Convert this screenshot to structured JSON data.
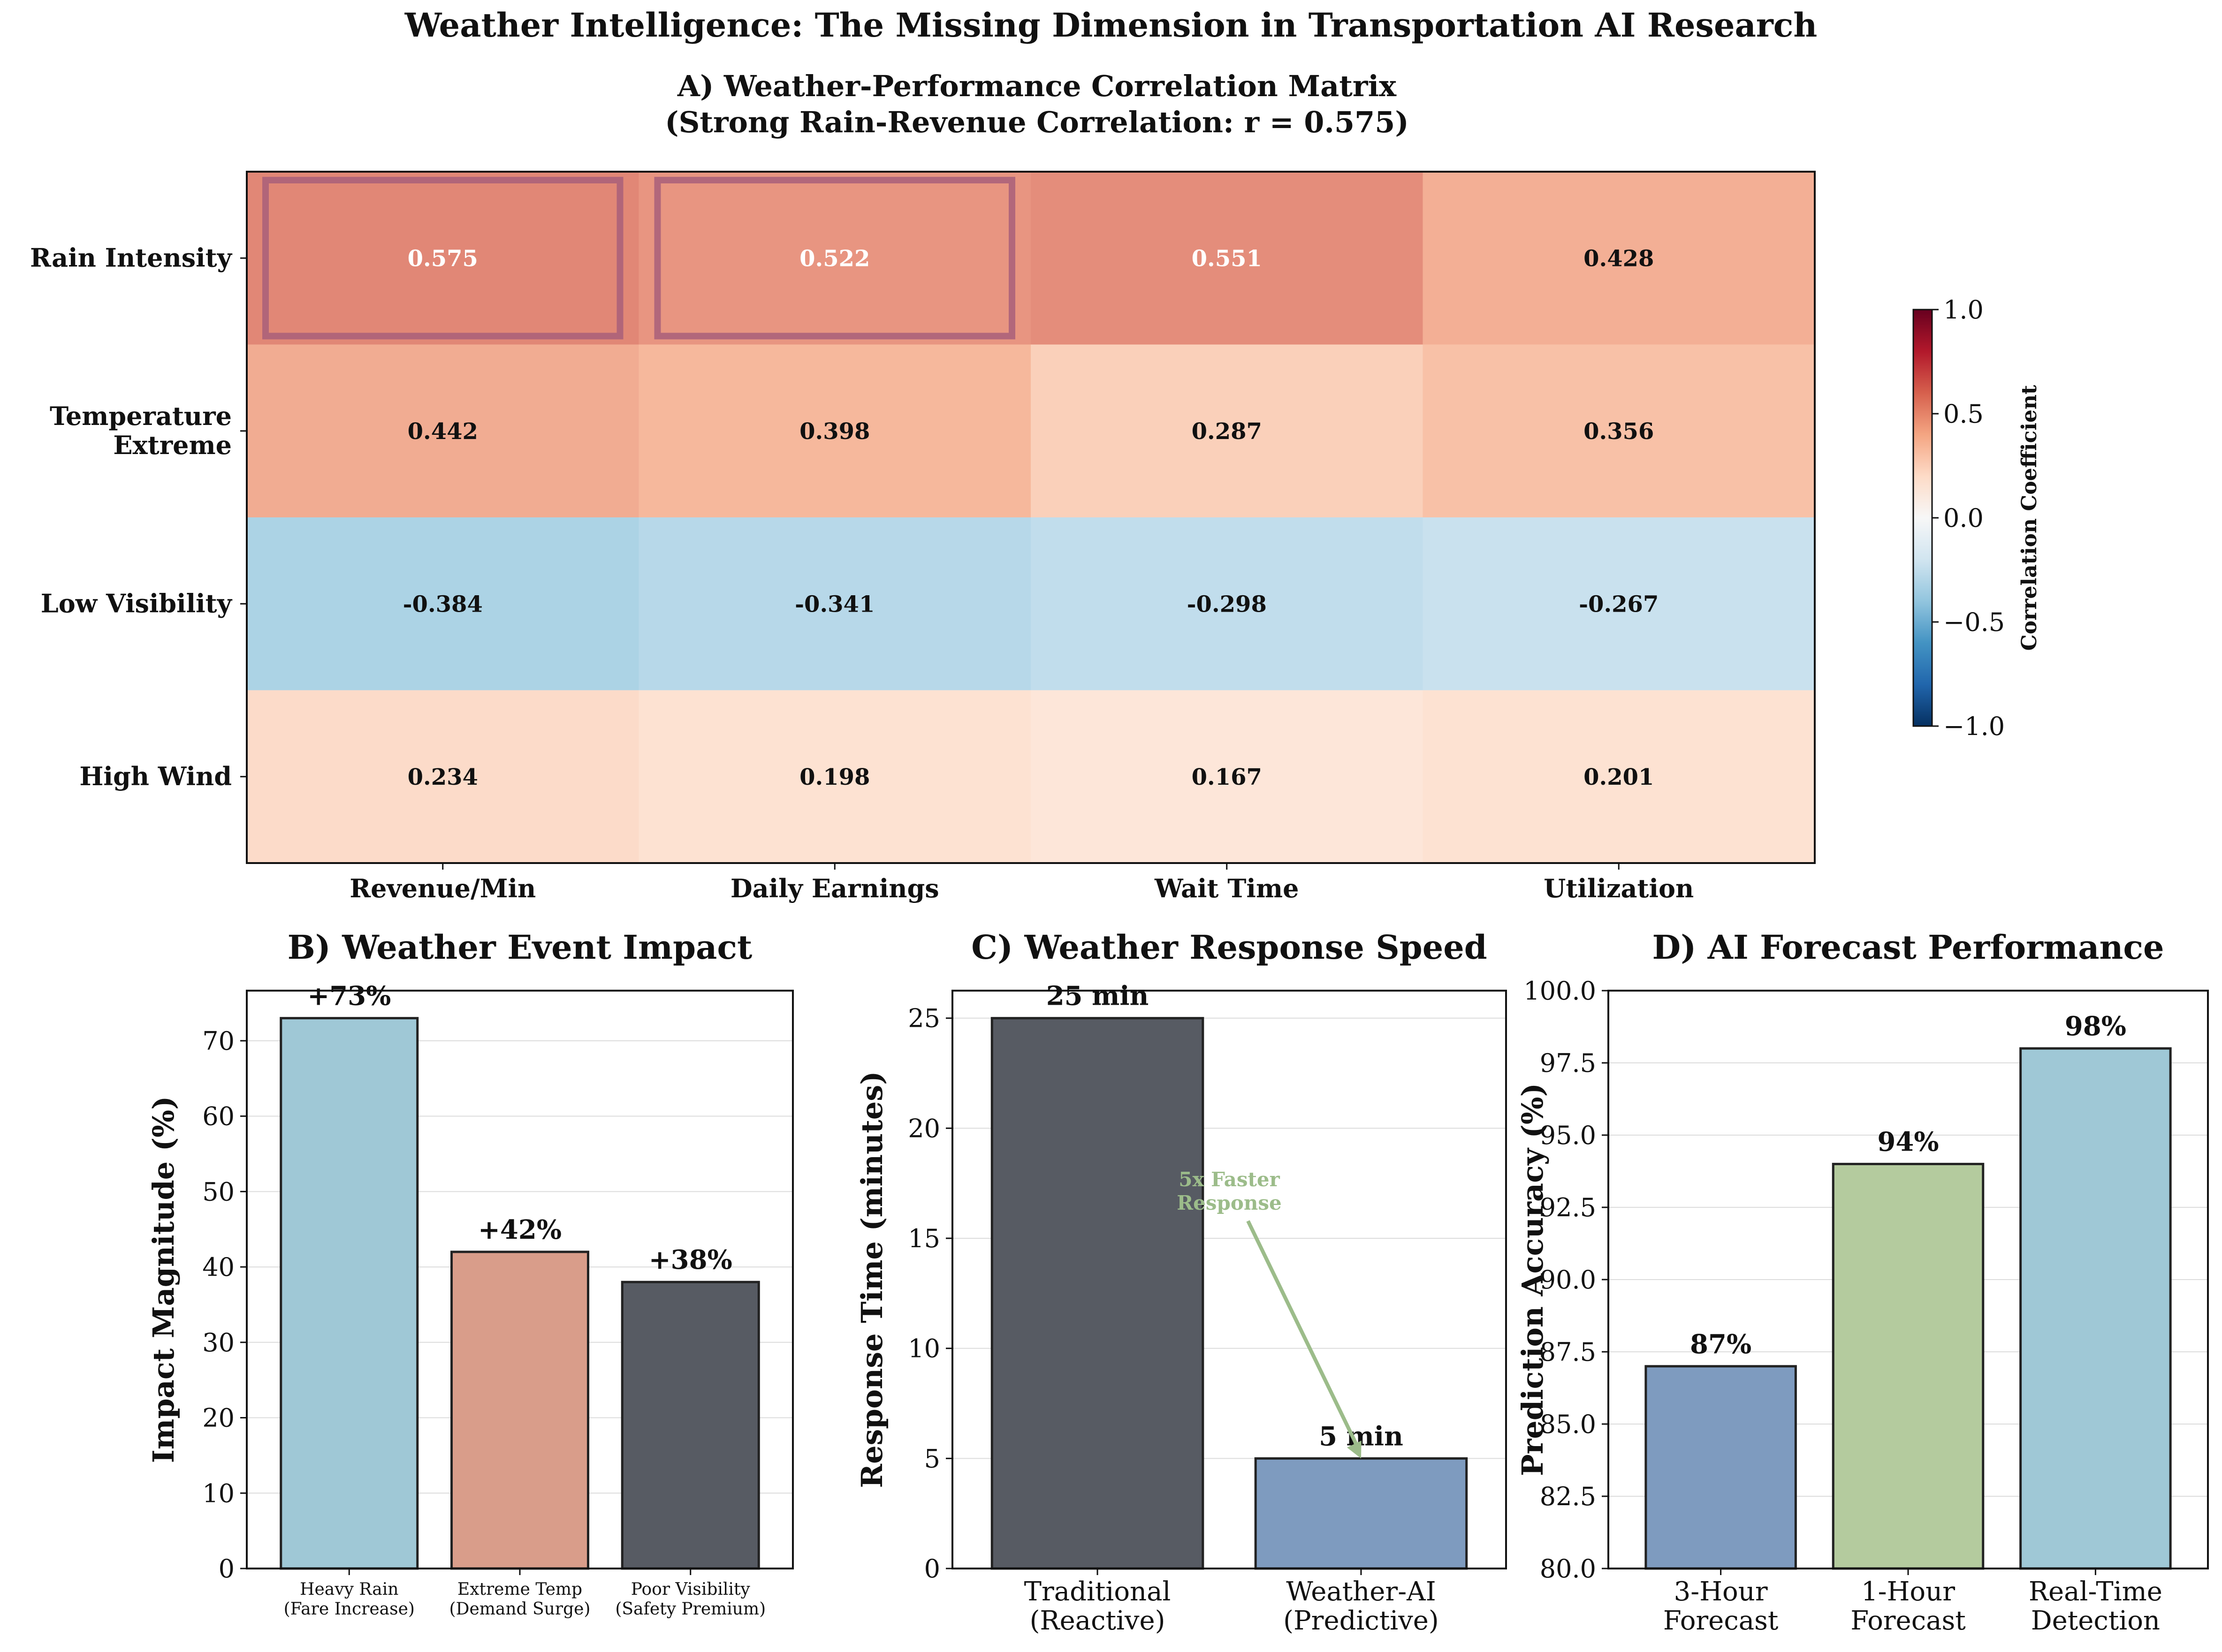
{
  "figure": {
    "title": "Weather Intelligence: The Missing Dimension in Transportation AI Research"
  },
  "chart_data": [
    {
      "type": "heatmap",
      "title": "A) Weather-Performance Correlation Matrix",
      "subtitle": "(Strong Rain-Revenue Correlation: r = 0.575)",
      "rows": [
        "Rain Intensity",
        "Temperature\nExtreme",
        "Low Visibility",
        "High Wind"
      ],
      "columns": [
        "Revenue/Min",
        "Daily Earnings",
        "Wait Time",
        "Utilization"
      ],
      "values": [
        [
          0.575,
          0.522,
          0.551,
          0.428
        ],
        [
          0.442,
          0.398,
          0.287,
          0.356
        ],
        [
          -0.384,
          -0.341,
          -0.298,
          -0.267
        ],
        [
          0.234,
          0.198,
          0.167,
          0.201
        ]
      ],
      "value_labels": [
        [
          "0.575",
          "0.522",
          "0.551",
          "0.428"
        ],
        [
          "0.442",
          "0.398",
          "0.287",
          "0.356"
        ],
        [
          "-0.384",
          "-0.341",
          "-0.298",
          "-0.267"
        ],
        [
          "0.234",
          "0.198",
          "0.167",
          "0.201"
        ]
      ],
      "highlighted_cells": [
        [
          0,
          0
        ],
        [
          0,
          1
        ]
      ],
      "highlight_color": "#a85f7a",
      "colormap": "RdBu_r",
      "vmin": -1.0,
      "vmax": 1.0,
      "colorbar_label": "Correlation Coefficient",
      "colorbar_ticks": [
        1.0,
        0.5,
        0.0,
        -0.5,
        -1.0
      ],
      "colorbar_tick_labels": [
        "1.0",
        "0.5",
        "0.0",
        "−0.5",
        "−1.0"
      ]
    },
    {
      "type": "bar",
      "title": "B) Weather Event Impact",
      "ylabel": "Impact Magnitude (%)",
      "categories": [
        "Heavy Rain\n(Fare Increase)",
        "Extreme Temp\n(Demand Surge)",
        "Poor Visibility\n(Safety Premium)"
      ],
      "values": [
        73,
        42,
        38
      ],
      "value_labels": [
        "+73%",
        "+42%",
        "+38%"
      ],
      "colors": [
        "#9fc8d6",
        "#d99d8a",
        "#575b63"
      ],
      "ylim": [
        0,
        76.65
      ],
      "yticks": [
        0,
        10,
        20,
        30,
        40,
        50,
        60,
        70
      ],
      "grid": true
    },
    {
      "type": "bar",
      "title": "C) Weather Response Speed",
      "ylabel": "Response Time (minutes)",
      "categories": [
        "Traditional\n(Reactive)",
        "Weather-AI\n(Predictive)"
      ],
      "values": [
        25,
        5
      ],
      "value_labels": [
        "25 min",
        "5 min"
      ],
      "colors": [
        "#575b63",
        "#7e9bbf"
      ],
      "ylim": [
        0,
        26.25
      ],
      "yticks": [
        0,
        5,
        10,
        15,
        20,
        25
      ],
      "annotation": {
        "text": "5x Faster\nResponse",
        "color": "#9cbc8a",
        "text_at": [
          0.5,
          16
        ],
        "arrow_to": [
          1.0,
          5
        ]
      },
      "grid": true
    },
    {
      "type": "bar",
      "title": "D) AI Forecast Performance",
      "ylabel": "Prediction Accuracy (%)",
      "categories": [
        "3-Hour\nForecast",
        "1-Hour\nForecast",
        "Real-Time\nDetection"
      ],
      "values": [
        87,
        94,
        98
      ],
      "value_labels": [
        "87%",
        "94%",
        "98%"
      ],
      "colors": [
        "#7e9bbf",
        "#b4cb9e",
        "#9fc8d6"
      ],
      "ylim": [
        80,
        100
      ],
      "yticks": [
        80.0,
        82.5,
        85.0,
        87.5,
        90.0,
        92.5,
        95.0,
        97.5,
        100.0
      ],
      "ytick_labels": [
        "80.0",
        "82.5",
        "85.0",
        "87.5",
        "90.0",
        "92.5",
        "95.0",
        "97.5",
        "100.0"
      ],
      "grid": true
    }
  ]
}
